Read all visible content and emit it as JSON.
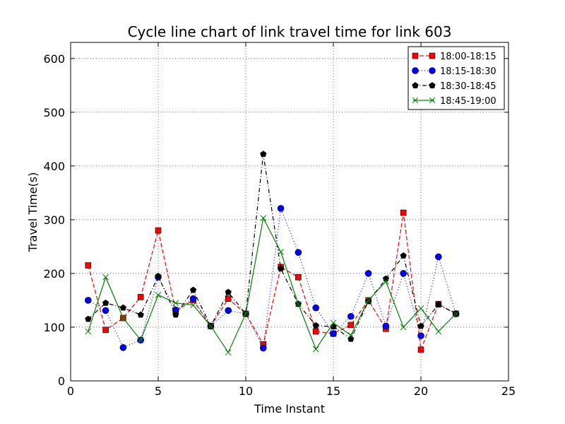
{
  "chart_data": {
    "type": "line",
    "title": "Cycle line chart of link travel time for link 603",
    "xlabel": "Time Instant",
    "ylabel": "Travel Time(s)",
    "xlim": [
      0,
      25
    ],
    "ylim": [
      0,
      630
    ],
    "xticks": [
      0,
      5,
      10,
      15,
      20,
      25
    ],
    "yticks": [
      0,
      100,
      200,
      300,
      400,
      500,
      600
    ],
    "grid": true,
    "legend_position": "top-right",
    "x": [
      1,
      2,
      3,
      4,
      5,
      6,
      7,
      8,
      9,
      10,
      11,
      12,
      13,
      14,
      15,
      16,
      17,
      18,
      19,
      20,
      21,
      22
    ],
    "series": [
      {
        "name": "18:00-18:15",
        "color": "#ff0000",
        "line_style": "dashed",
        "marker": "square",
        "values": [
          215,
          95,
          117,
          156,
          280,
          130,
          150,
          102,
          153,
          125,
          68,
          212,
          193,
          92,
          88,
          104,
          150,
          97,
          313,
          58,
          143,
          125
        ]
      },
      {
        "name": "18:15-18:30",
        "color": "#0000ff",
        "line_style": "dotted",
        "marker": "circle",
        "values": [
          150,
          131,
          62,
          76,
          193,
          132,
          153,
          102,
          131,
          125,
          61,
          321,
          239,
          136,
          88,
          120,
          200,
          102,
          200,
          84,
          231,
          125
        ]
      },
      {
        "name": "18:30-18:45",
        "color": "#000000",
        "line_style": "dashdot",
        "marker": "pentagon",
        "values": [
          115,
          145,
          136,
          123,
          195,
          123,
          169,
          102,
          165,
          125,
          422,
          209,
          143,
          103,
          101,
          78,
          148,
          190,
          233,
          102,
          142,
          125
        ]
      },
      {
        "name": "18:45-19:00",
        "color": "#008000",
        "line_style": "solid",
        "marker": "x",
        "values": [
          92,
          193,
          117,
          76,
          160,
          145,
          141,
          102,
          53,
          125,
          303,
          240,
          143,
          59,
          108,
          85,
          150,
          185,
          100,
          135,
          92,
          125
        ]
      }
    ]
  }
}
